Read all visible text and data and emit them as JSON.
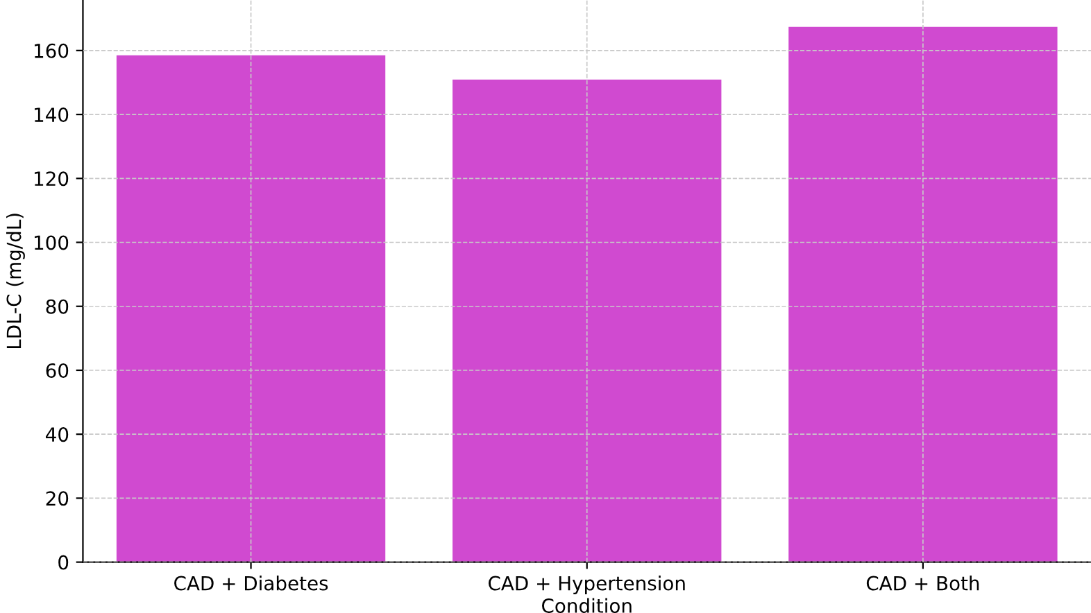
{
  "chart_data": {
    "type": "bar",
    "xlabel": "Condition",
    "ylabel": "LDL-C (mg/dL)",
    "categories": [
      "CAD + Diabetes",
      "CAD + Hypertension",
      "CAD + Both"
    ],
    "values": [
      158.5,
      150.9,
      167.4
    ],
    "color": "#d04ad0",
    "ylim": [
      0,
      175.8
    ],
    "yticks": [
      0,
      20,
      40,
      60,
      80,
      100,
      120,
      140,
      160
    ],
    "grid": true
  }
}
